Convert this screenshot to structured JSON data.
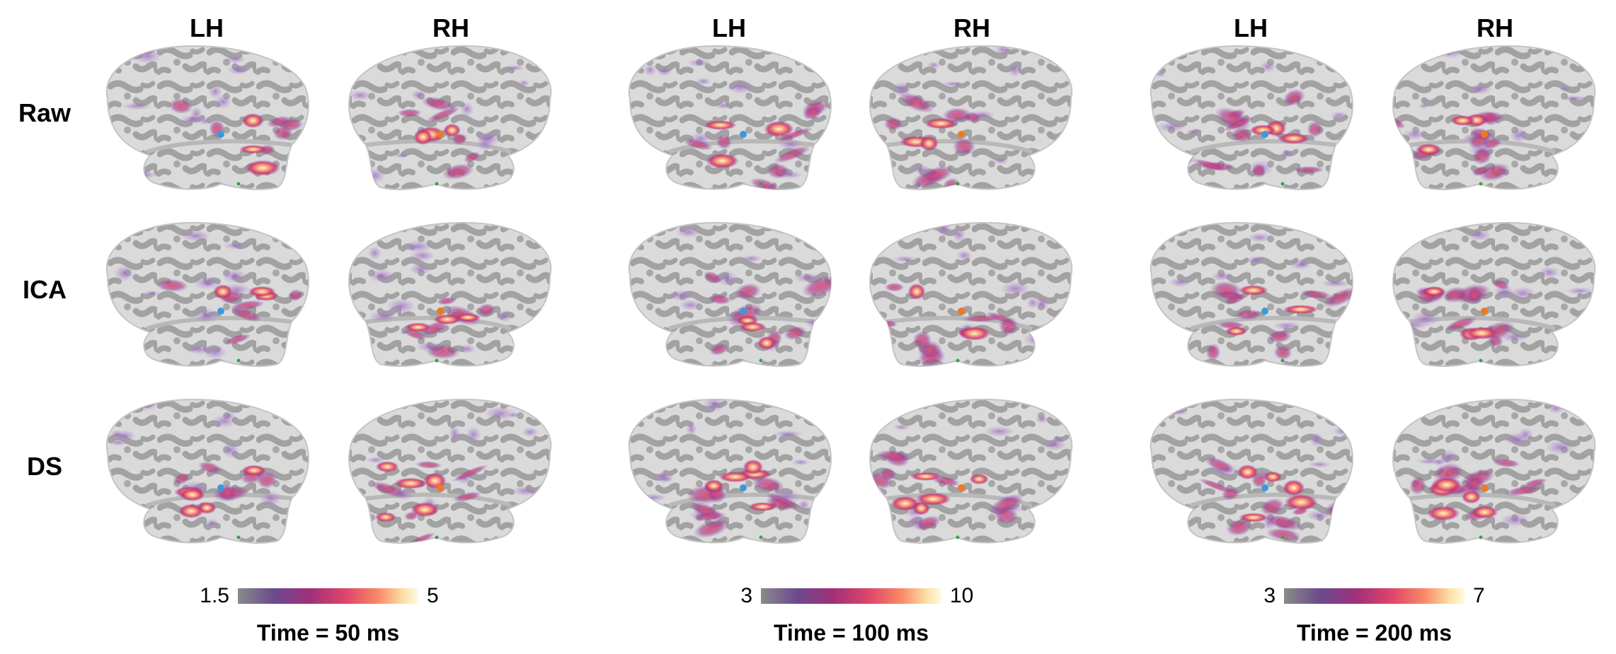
{
  "hemisphere_labels": [
    "LH",
    "RH"
  ],
  "rows": [
    "Raw",
    "ICA",
    "DS"
  ],
  "panels": [
    {
      "time_label": "Time = 50 ms",
      "colorbar": {
        "min_label": "1.5",
        "max_label": "5"
      }
    },
    {
      "time_label": "Time = 100 ms",
      "colorbar": {
        "min_label": "3",
        "max_label": "10"
      }
    },
    {
      "time_label": "Time = 200 ms",
      "colorbar": {
        "min_label": "3",
        "max_label": "7"
      }
    }
  ],
  "colors": {
    "cortex_dark": "#9a9a9a",
    "cortex_light": "#dcdcdc",
    "activation_low": "#7a3d8f",
    "activation_mid": "#d2335f",
    "activation_high": "#fff2c0",
    "marker_lh": "#3a9ad9",
    "marker_rh": "#f07820"
  },
  "colormap": [
    "#8a8a8a",
    "#6b4a8e",
    "#a0307a",
    "#e0456a",
    "#f98a66",
    "#fde0a8",
    "#fffbe0"
  ]
}
